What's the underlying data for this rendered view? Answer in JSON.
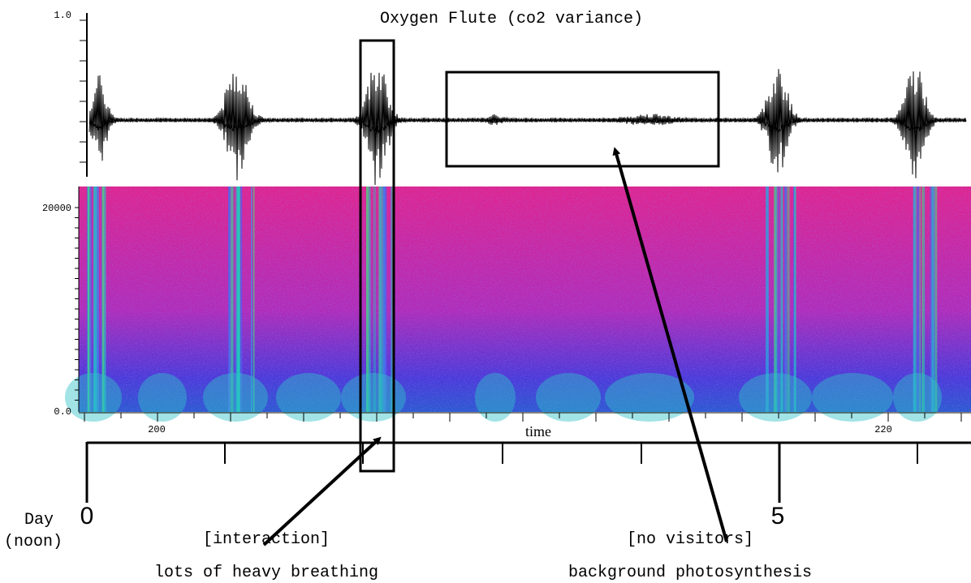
{
  "title": "Oxygen Flute (co2 variance)",
  "waveform": {
    "ytick_top": "1.0"
  },
  "spectrogram": {
    "ytick_top": "20000",
    "ytick_bottom": "0.0"
  },
  "time_axis": {
    "label": "time",
    "tick_left": "200",
    "tick_right": "220"
  },
  "day_axis": {
    "label": "Day",
    "sublabel": "(noon)",
    "tick_start": "0",
    "tick_mid": "5"
  },
  "annotations": [
    {
      "title": "[interaction]",
      "text": "lots of heavy breathing"
    },
    {
      "title": "[no visitors]",
      "text": "background photosynthesis"
    }
  ]
}
